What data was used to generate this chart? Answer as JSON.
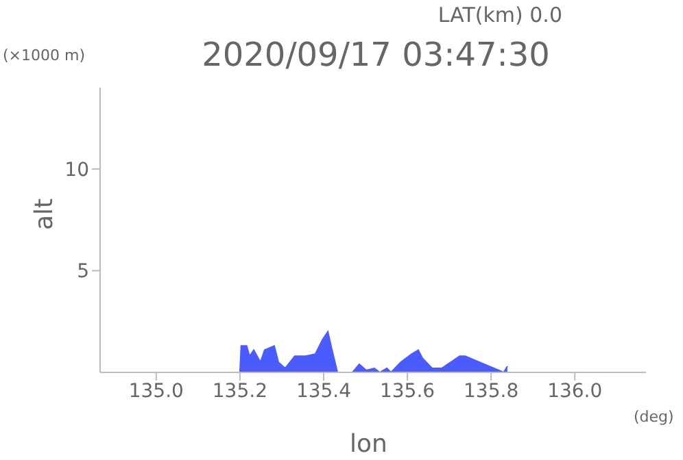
{
  "chart_data": {
    "type": "area",
    "title": "2020/09/17 03:47:30",
    "xlabel": "lon",
    "ylabel": "alt",
    "annotations": [
      "LAT(km) 0.0",
      "(×1000 m)",
      "(deg)"
    ],
    "x": [
      135.2,
      135.203,
      135.216,
      135.223,
      135.233,
      135.249,
      135.259,
      135.282,
      135.292,
      135.308,
      135.331,
      135.357,
      135.38,
      135.397,
      135.41,
      135.42,
      135.433,
      135.469,
      135.485,
      135.502,
      135.521,
      135.534,
      135.551,
      135.561,
      135.584,
      135.61,
      135.626,
      135.636,
      135.659,
      135.682,
      135.725,
      135.738,
      135.83,
      135.839
    ],
    "series": [
      {
        "color": "#4a5cff",
        "values": [
          0,
          1.3,
          1.3,
          0.8,
          1.1,
          0.5,
          1.1,
          1.3,
          0.5,
          0.2,
          0.8,
          0.8,
          0.9,
          1.6,
          2.0,
          1.1,
          0,
          0,
          0.4,
          0.1,
          0.2,
          0,
          0.2,
          0,
          0.5,
          0.9,
          1.1,
          0.7,
          0.2,
          0.2,
          0.8,
          0.8,
          0,
          0.3
        ]
      }
    ],
    "xlim": [
      134.866,
      136.17
    ],
    "xticks": [
      {
        "value": 135.0,
        "label": "135.0"
      },
      {
        "value": 135.2,
        "label": "135.2"
      },
      {
        "value": 135.4,
        "label": "135.4"
      },
      {
        "value": 135.6,
        "label": "135.6"
      },
      {
        "value": 135.8,
        "label": "135.8"
      },
      {
        "value": 136.0,
        "label": "136.0"
      }
    ],
    "ylim": [
      0,
      14
    ],
    "yticks": [
      5,
      10
    ]
  }
}
